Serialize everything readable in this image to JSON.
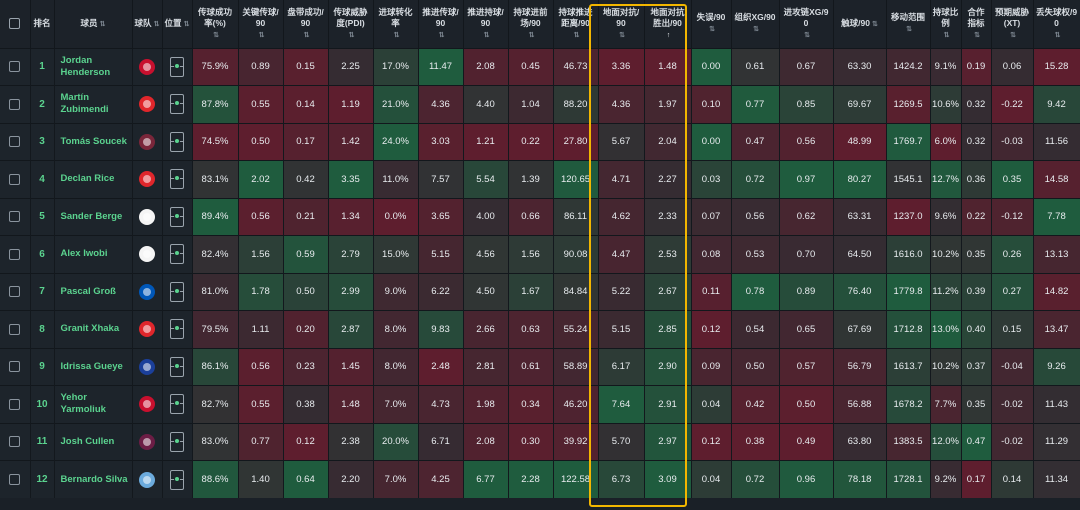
{
  "headers": [
    {
      "key": "select",
      "label": "",
      "sort": ""
    },
    {
      "key": "rank",
      "label": "排名",
      "sort": ""
    },
    {
      "key": "player",
      "label": "球员",
      "sort": "⇅"
    },
    {
      "key": "club",
      "label": "球队",
      "sort": "⇅"
    },
    {
      "key": "pos",
      "label": "位置",
      "sort": "⇅"
    },
    {
      "key": "pass_pct",
      "label": "传球成功率(%)",
      "sort": "⇅"
    },
    {
      "key": "key_pass",
      "label": "关键传球/90",
      "sort": "⇅"
    },
    {
      "key": "dribble",
      "label": "盘带成功/90",
      "sort": "⇅"
    },
    {
      "key": "pdi",
      "label": "传球威胁度(PDI)",
      "sort": "⇅"
    },
    {
      "key": "conv",
      "label": "进球转化率",
      "sort": "⇅"
    },
    {
      "key": "prog_pass",
      "label": "推进传球/90",
      "sort": "⇅"
    },
    {
      "key": "prog_carry",
      "label": "推进持球/90",
      "sort": "⇅"
    },
    {
      "key": "carry_ft",
      "label": "持球进前场/90",
      "sort": "⇅"
    },
    {
      "key": "carry_dist",
      "label": "持球推进距离/90",
      "sort": "⇅"
    },
    {
      "key": "gduels",
      "label": "地面对抗/90",
      "sort": "⇅"
    },
    {
      "key": "gduels_won",
      "label": "地面对抗胜出/90",
      "sort": "↑"
    },
    {
      "key": "errors",
      "label": "失误/90",
      "sort": "⇅"
    },
    {
      "key": "xg_chain",
      "label": "组织XG/90",
      "sort": "⇅"
    },
    {
      "key": "xg_buildup",
      "label": "进攻链XG/90",
      "sort": "⇅"
    },
    {
      "key": "touches",
      "label": "触球/90",
      "sort": "⇅"
    },
    {
      "key": "range",
      "label": "移动范围",
      "sort": "⇅"
    },
    {
      "key": "carry_ratio",
      "label": "持球比例",
      "sort": "⇅"
    },
    {
      "key": "coop",
      "label": "合作指标",
      "sort": "⇅"
    },
    {
      "key": "xt",
      "label": "预期威胁(XT)",
      "sort": "⇅"
    },
    {
      "key": "lost",
      "label": "丢失球权/90",
      "sort": "⇅"
    }
  ],
  "rows": [
    {
      "rank": "1",
      "name": "Jordan Henderson",
      "crest": "#c8102e",
      "cells": [
        "75.9%",
        "0.89",
        "0.15",
        "2.25",
        "17.0%",
        "11.47",
        "2.08",
        "0.45",
        "46.73",
        "3.36",
        "1.48",
        "0.00",
        "0.61",
        "0.67",
        "63.30",
        "1424.2",
        "9.1%",
        "0.19",
        "0.06",
        "15.28"
      ]
    },
    {
      "rank": "2",
      "name": "Martín Zubimendi",
      "crest": "#e0262b",
      "cells": [
        "87.8%",
        "0.55",
        "0.14",
        "1.19",
        "21.0%",
        "4.36",
        "4.40",
        "1.04",
        "88.20",
        "4.36",
        "1.97",
        "0.10",
        "0.77",
        "0.85",
        "69.67",
        "1269.5",
        "10.6%",
        "0.32",
        "-0.22",
        "9.42"
      ]
    },
    {
      "rank": "3",
      "name": "Tomás Soucek",
      "crest": "#7a263a",
      "cells": [
        "74.5%",
        "0.50",
        "0.17",
        "1.42",
        "24.0%",
        "3.03",
        "1.21",
        "0.22",
        "27.80",
        "5.67",
        "2.04",
        "0.00",
        "0.47",
        "0.56",
        "48.99",
        "1769.7",
        "6.0%",
        "0.32",
        "-0.03",
        "11.56"
      ]
    },
    {
      "rank": "4",
      "name": "Declan Rice",
      "crest": "#e0262b",
      "cells": [
        "83.1%",
        "2.02",
        "0.42",
        "3.35",
        "11.0%",
        "7.57",
        "5.54",
        "1.39",
        "120.65",
        "4.71",
        "2.27",
        "0.03",
        "0.72",
        "0.97",
        "80.27",
        "1545.1",
        "12.7%",
        "0.36",
        "0.35",
        "14.58"
      ]
    },
    {
      "rank": "5",
      "name": "Sander Berge",
      "crest": "#f5f5f5",
      "cells": [
        "89.4%",
        "0.56",
        "0.21",
        "1.34",
        "0.0%",
        "3.65",
        "4.00",
        "0.66",
        "86.11",
        "4.62",
        "2.33",
        "0.07",
        "0.56",
        "0.62",
        "63.31",
        "1237.0",
        "9.6%",
        "0.22",
        "-0.12",
        "7.78"
      ]
    },
    {
      "rank": "6",
      "name": "Alex Iwobi",
      "crest": "#f5f5f5",
      "cells": [
        "82.4%",
        "1.56",
        "0.59",
        "2.79",
        "15.0%",
        "5.15",
        "4.56",
        "1.56",
        "90.08",
        "4.47",
        "2.53",
        "0.08",
        "0.53",
        "0.70",
        "64.50",
        "1616.0",
        "10.2%",
        "0.35",
        "0.26",
        "13.13"
      ]
    },
    {
      "rank": "7",
      "name": "Pascal Groß",
      "crest": "#0057b8",
      "cells": [
        "81.0%",
        "1.78",
        "0.50",
        "2.99",
        "9.0%",
        "6.22",
        "4.50",
        "1.67",
        "84.84",
        "5.22",
        "2.67",
        "0.11",
        "0.78",
        "0.89",
        "76.40",
        "1779.8",
        "11.2%",
        "0.39",
        "0.27",
        "14.82"
      ]
    },
    {
      "rank": "8",
      "name": "Granit Xhaka",
      "crest": "#e0262b",
      "cells": [
        "79.5%",
        "1.11",
        "0.20",
        "2.87",
        "8.0%",
        "9.83",
        "2.66",
        "0.63",
        "55.24",
        "5.15",
        "2.85",
        "0.12",
        "0.54",
        "0.65",
        "67.69",
        "1712.8",
        "13.0%",
        "0.40",
        "0.15",
        "13.47"
      ]
    },
    {
      "rank": "9",
      "name": "Idrissa Gueye",
      "crest": "#1b3f9a",
      "cells": [
        "86.1%",
        "0.56",
        "0.23",
        "1.45",
        "8.0%",
        "2.48",
        "2.81",
        "0.61",
        "58.89",
        "6.17",
        "2.90",
        "0.09",
        "0.50",
        "0.57",
        "56.79",
        "1613.7",
        "10.2%",
        "0.37",
        "-0.04",
        "9.26"
      ]
    },
    {
      "rank": "10",
      "name": "Yehor Yarmoliuk",
      "crest": "#c8102e",
      "cells": [
        "82.7%",
        "0.55",
        "0.38",
        "1.48",
        "7.0%",
        "4.73",
        "1.98",
        "0.34",
        "46.20",
        "7.64",
        "2.91",
        "0.04",
        "0.42",
        "0.50",
        "56.88",
        "1678.2",
        "7.7%",
        "0.35",
        "-0.02",
        "11.43"
      ]
    },
    {
      "rank": "11",
      "name": "Josh Cullen",
      "crest": "#6c1d45",
      "cells": [
        "83.0%",
        "0.77",
        "0.12",
        "2.38",
        "20.0%",
        "6.71",
        "2.08",
        "0.30",
        "39.92",
        "5.70",
        "2.97",
        "0.12",
        "0.38",
        "0.49",
        "63.80",
        "1383.5",
        "12.0%",
        "0.47",
        "-0.02",
        "11.29"
      ]
    },
    {
      "rank": "12",
      "name": "Bernardo Silva",
      "crest": "#6cabdd",
      "cells": [
        "88.6%",
        "1.40",
        "0.64",
        "2.20",
        "7.0%",
        "4.25",
        "6.77",
        "2.28",
        "122.58",
        "6.73",
        "3.09",
        "0.04",
        "0.72",
        "0.96",
        "78.18",
        "1728.1",
        "9.2%",
        "0.17",
        "0.14",
        "11.34"
      ]
    }
  ],
  "colors": {
    "highlight": "#f2b600",
    "accent": "#5bd38f",
    "good": "#1f5a3c",
    "bad": "#5a1f2c"
  }
}
